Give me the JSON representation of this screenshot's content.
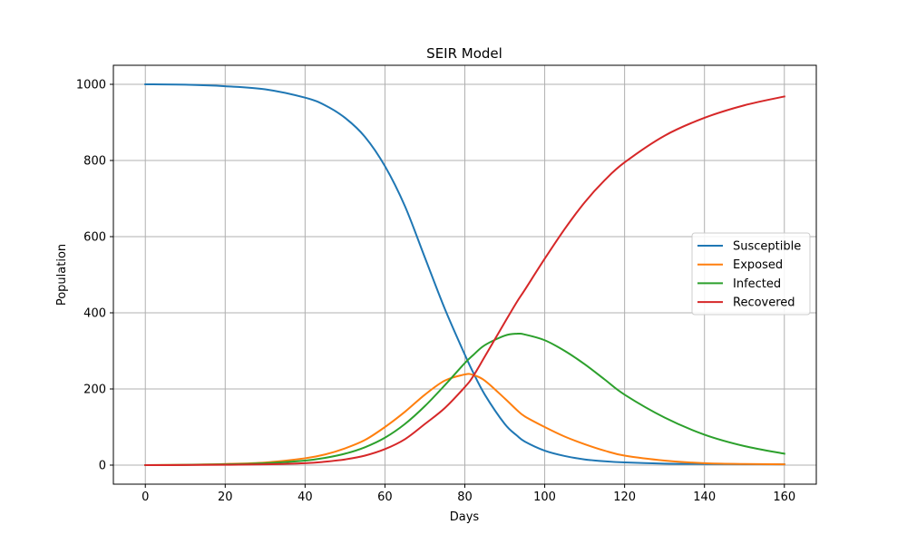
{
  "chart_data": {
    "type": "line",
    "title": "SEIR Model",
    "xlabel": "Days",
    "ylabel": "Population",
    "xlim": [
      -8,
      168
    ],
    "ylim": [
      -50,
      1050
    ],
    "xticks": [
      0,
      20,
      40,
      60,
      80,
      100,
      120,
      140,
      160
    ],
    "yticks": [
      0,
      200,
      400,
      600,
      800,
      1000
    ],
    "grid": true,
    "legend_position": "center-right",
    "x": [
      0,
      10,
      20,
      30,
      40,
      45,
      50,
      55,
      60,
      65,
      70,
      75,
      80,
      82,
      85,
      90,
      93,
      95,
      100,
      105,
      110,
      115,
      120,
      130,
      140,
      150,
      160
    ],
    "series": [
      {
        "name": "Susceptible",
        "color": "#1f77b4",
        "values": [
          1000,
          999,
          995,
          987,
          965,
          945,
          912,
          862,
          785,
          680,
          545,
          410,
          290,
          245,
          185,
          108,
          78,
          62,
          38,
          24,
          15,
          10,
          7,
          4,
          3,
          2.5,
          2
        ]
      },
      {
        "name": "Exposed",
        "color": "#ff7f0e",
        "values": [
          0,
          1,
          3,
          7,
          18,
          28,
          44,
          66,
          100,
          140,
          185,
          222,
          238,
          237,
          222,
          175,
          145,
          128,
          100,
          75,
          55,
          38,
          25,
          12,
          5,
          3,
          2
        ]
      },
      {
        "name": "Infected",
        "color": "#2ca02c",
        "values": [
          0,
          0.5,
          2,
          5,
          12,
          19,
          30,
          47,
          72,
          108,
          155,
          210,
          268,
          288,
          315,
          340,
          345,
          343,
          328,
          300,
          265,
          225,
          185,
          125,
          80,
          50,
          30
        ]
      },
      {
        "name": "Recovered",
        "color": "#d62728",
        "values": [
          0,
          0.2,
          0.8,
          2,
          5,
          9,
          15,
          25,
          42,
          68,
          108,
          150,
          205,
          232,
          285,
          375,
          428,
          460,
          542,
          620,
          690,
          748,
          795,
          865,
          912,
          945,
          968
        ]
      }
    ]
  }
}
